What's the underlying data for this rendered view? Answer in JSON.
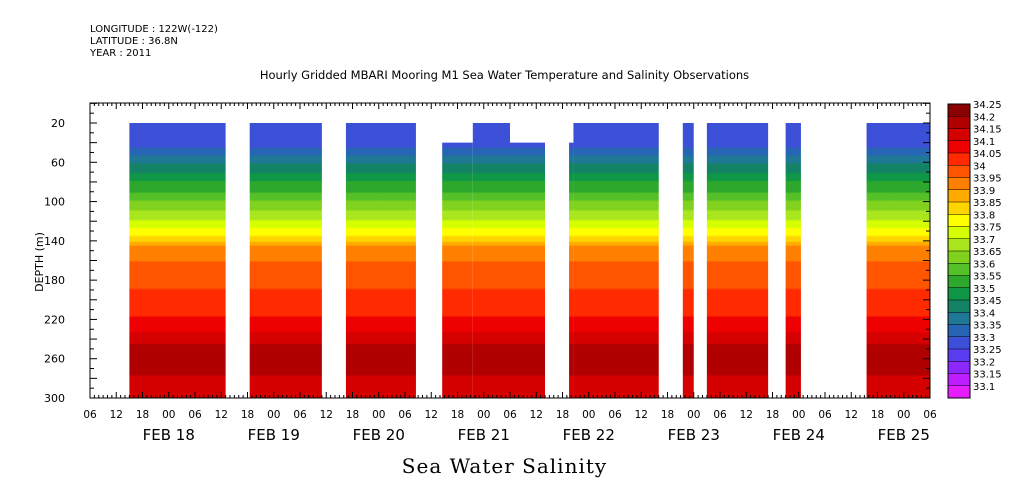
{
  "header": {
    "longitude": "LONGITUDE : 122W(-122)",
    "latitude": "LATITUDE : 36.8N",
    "year": "YEAR : 2011"
  },
  "chart_data": {
    "type": "heatmap",
    "title": "Hourly Gridded MBARI Mooring M1 Sea Water Temperature and Salinity Observations",
    "bottom_title": "Sea Water Salinity",
    "ylabel": "DEPTH (m)",
    "y_axis": {
      "reversed": true,
      "ylim": [
        300,
        0
      ],
      "ticks": [
        20,
        60,
        100,
        140,
        180,
        220,
        260,
        300
      ]
    },
    "x_axis": {
      "unit": "hours since 2011-02-17 06:00",
      "xlim": [
        0,
        192
      ],
      "hour_ticks": [
        {
          "h": 0,
          "label": "06"
        },
        {
          "h": 6,
          "label": "12"
        },
        {
          "h": 12,
          "label": "18"
        },
        {
          "h": 18,
          "label": "00"
        },
        {
          "h": 24,
          "label": "06"
        },
        {
          "h": 30,
          "label": "12"
        },
        {
          "h": 36,
          "label": "18"
        },
        {
          "h": 42,
          "label": "00"
        },
        {
          "h": 48,
          "label": "06"
        },
        {
          "h": 54,
          "label": "12"
        },
        {
          "h": 60,
          "label": "18"
        },
        {
          "h": 66,
          "label": "00"
        },
        {
          "h": 72,
          "label": "06"
        },
        {
          "h": 78,
          "label": "12"
        },
        {
          "h": 84,
          "label": "18"
        },
        {
          "h": 90,
          "label": "00"
        },
        {
          "h": 96,
          "label": "06"
        },
        {
          "h": 102,
          "label": "12"
        },
        {
          "h": 108,
          "label": "18"
        },
        {
          "h": 114,
          "label": "00"
        },
        {
          "h": 120,
          "label": "06"
        },
        {
          "h": 126,
          "label": "12"
        },
        {
          "h": 132,
          "label": "18"
        },
        {
          "h": 138,
          "label": "00"
        },
        {
          "h": 144,
          "label": "06"
        },
        {
          "h": 150,
          "label": "12"
        },
        {
          "h": 156,
          "label": "18"
        },
        {
          "h": 162,
          "label": "00"
        },
        {
          "h": 168,
          "label": "06"
        },
        {
          "h": 174,
          "label": "12"
        },
        {
          "h": 180,
          "label": "18"
        },
        {
          "h": 186,
          "label": "00"
        },
        {
          "h": 192,
          "label": "06"
        }
      ],
      "date_labels": [
        {
          "h": 18,
          "label": "FEB 18"
        },
        {
          "h": 42,
          "label": "FEB 19"
        },
        {
          "h": 66,
          "label": "FEB 20"
        },
        {
          "h": 90,
          "label": "FEB 21"
        },
        {
          "h": 114,
          "label": "FEB 22"
        },
        {
          "h": 138,
          "label": "FEB 23"
        },
        {
          "h": 162,
          "label": "FEB 24"
        },
        {
          "h": 186,
          "label": "FEB 25"
        }
      ]
    },
    "data_segments": [
      {
        "start": 9,
        "end": 31,
        "top_depth": 20
      },
      {
        "start": 36.5,
        "end": 53,
        "top_depth": 20
      },
      {
        "start": 58.5,
        "end": 74.5,
        "top_depth": 20
      },
      {
        "start": 80.5,
        "end": 87.5,
        "top_depth": 40
      },
      {
        "start": 87.5,
        "end": 96,
        "top_depth": 20
      },
      {
        "start": 96,
        "end": 104,
        "top_depth": 40
      },
      {
        "start": 109.5,
        "end": 110.5,
        "top_depth": 40
      },
      {
        "start": 110.5,
        "end": 130,
        "top_depth": 20
      },
      {
        "start": 135.5,
        "end": 138,
        "top_depth": 20
      },
      {
        "start": 141,
        "end": 155,
        "top_depth": 20
      },
      {
        "start": 159,
        "end": 162.5,
        "top_depth": 20
      },
      {
        "start": 177.5,
        "end": 192,
        "top_depth": 20
      }
    ],
    "salinity_profile": [
      {
        "depth": 20,
        "value": 33.33
      },
      {
        "depth": 45,
        "value": 33.35
      },
      {
        "depth": 62,
        "value": 33.45
      },
      {
        "depth": 80,
        "value": 33.55
      },
      {
        "depth": 100,
        "value": 33.65
      },
      {
        "depth": 120,
        "value": 33.75
      },
      {
        "depth": 135,
        "value": 33.85
      },
      {
        "depth": 148,
        "value": 33.97
      },
      {
        "depth": 175,
        "value": 34.03
      },
      {
        "depth": 205,
        "value": 34.07
      },
      {
        "depth": 225,
        "value": 34.12
      },
      {
        "depth": 245,
        "value": 34.2
      },
      {
        "depth": 262,
        "value": 34.24
      },
      {
        "depth": 285,
        "value": 34.18
      },
      {
        "depth": 300,
        "value": 34.15
      }
    ],
    "colorbar": {
      "levels": [
        "34.25",
        "34.2",
        "34.15",
        "34.1",
        "34.05",
        "34",
        "33.95",
        "33.9",
        "33.85",
        "33.8",
        "33.75",
        "33.7",
        "33.65",
        "33.6",
        "33.55",
        "33.5",
        "33.45",
        "33.4",
        "33.35",
        "33.3",
        "33.25",
        "33.2",
        "33.15",
        "33.1"
      ],
      "colors": [
        "#8b0000",
        "#b00000",
        "#d50000",
        "#ee0000",
        "#ff2a00",
        "#ff5500",
        "#ff8000",
        "#ffaa00",
        "#ffd500",
        "#ffff00",
        "#d5ff00",
        "#aae61e",
        "#80d21e",
        "#55c028",
        "#2da82d",
        "#0f9646",
        "#148264",
        "#1e7896",
        "#2864b4",
        "#3c50d7",
        "#5a3cf0",
        "#8c28ff",
        "#be1eff",
        "#e61eff"
      ]
    }
  }
}
